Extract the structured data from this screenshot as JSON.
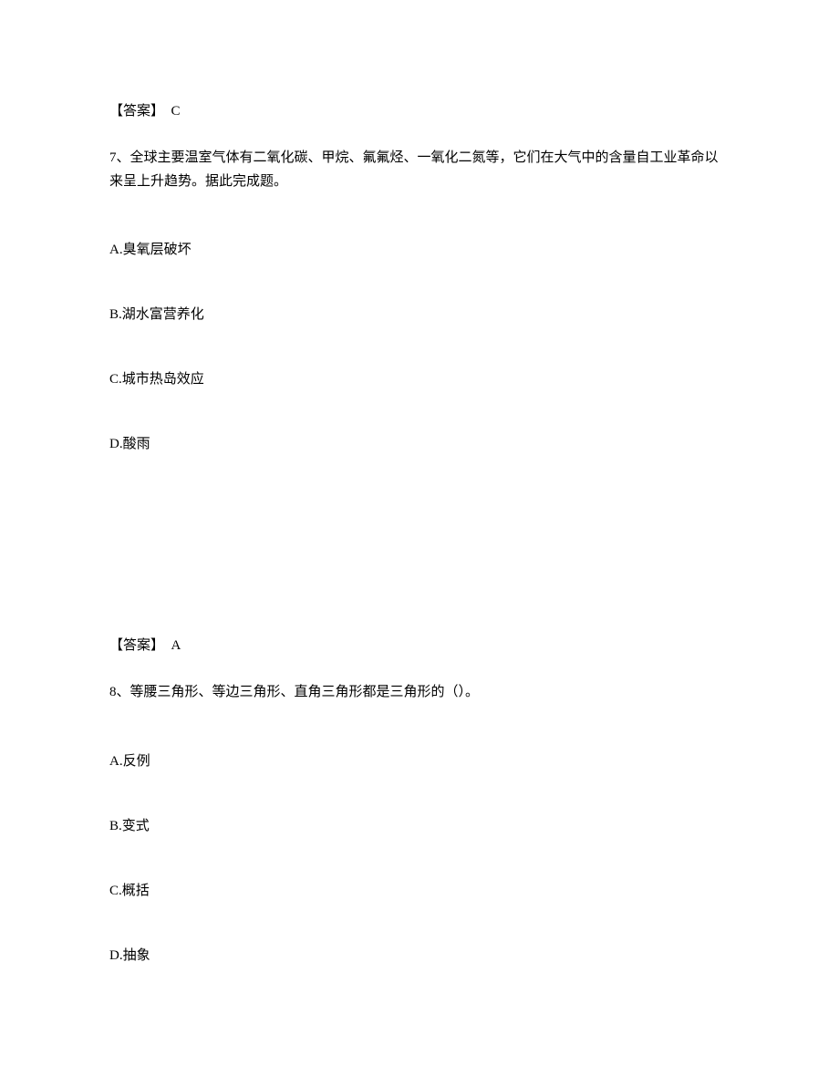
{
  "answer6": {
    "label": "【答案】",
    "value": "C"
  },
  "question7": {
    "number": "7、",
    "text": "全球主要温室气体有二氧化碳、甲烷、氟氟烃、一氧化二氮等，它们在大气中的含量自工业革命以来呈上升趋势。据此完成题。",
    "options": {
      "a": "A.臭氧层破坏",
      "b": "B.湖水富营养化",
      "c": "C.城市热岛效应",
      "d": "D.酸雨"
    }
  },
  "answer7": {
    "label": "【答案】",
    "value": "A"
  },
  "question8": {
    "number": "8、",
    "text": "等腰三角形、等边三角形、直角三角形都是三角形的（）。",
    "options": {
      "a": "A.反例",
      "b": "B.变式",
      "c": "C.概括",
      "d": "D.抽象"
    }
  }
}
